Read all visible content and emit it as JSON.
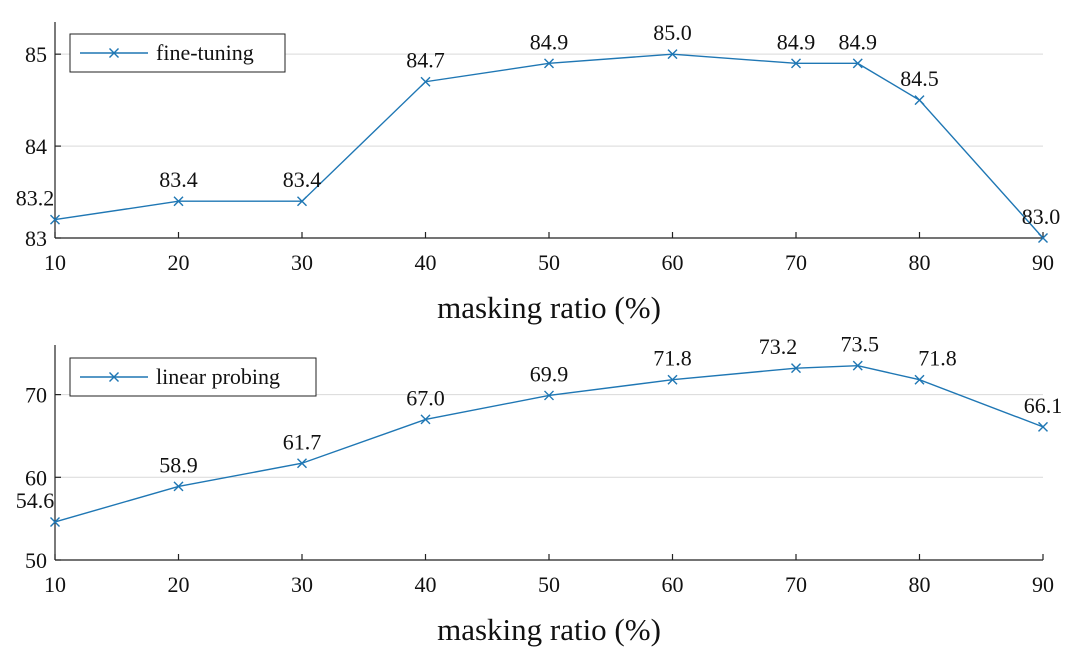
{
  "colors": {
    "series": "#1f77b4",
    "grid": "#d9d9d9",
    "axis": "#222222"
  },
  "chart_data": [
    {
      "type": "line",
      "series": [
        {
          "name": "fine-tuning",
          "x": [
            10,
            20,
            30,
            40,
            50,
            60,
            70,
            75,
            80,
            90
          ],
          "values": [
            83.2,
            83.4,
            83.4,
            84.7,
            84.9,
            85.0,
            84.9,
            84.9,
            84.5,
            83.0
          ],
          "labels": [
            "83.2",
            "83.4",
            "83.4",
            "84.7",
            "84.9",
            "85.0",
            "84.9",
            "84.9",
            "84.5",
            "83.0"
          ]
        }
      ],
      "xticks": [
        10,
        20,
        30,
        40,
        50,
        60,
        70,
        80,
        90
      ],
      "xtick_labels": [
        "10",
        "20",
        "30",
        "40",
        "50",
        "60",
        "70",
        "80",
        "90"
      ],
      "yticks": [
        83,
        84,
        85
      ],
      "ytick_labels": [
        "83",
        "84",
        "85"
      ],
      "xlim": [
        10,
        90
      ],
      "ylim": [
        83,
        85.35
      ],
      "xlabel": "masking ratio (%)",
      "ylabel": "",
      "legend": "top-left",
      "grid": true,
      "marker": "x"
    },
    {
      "type": "line",
      "series": [
        {
          "name": "linear probing",
          "x": [
            10,
            20,
            30,
            40,
            50,
            60,
            70,
            75,
            80,
            90
          ],
          "values": [
            54.6,
            58.9,
            61.7,
            67.0,
            69.9,
            71.8,
            73.2,
            73.5,
            71.8,
            66.1
          ],
          "labels": [
            "54.6",
            "58.9",
            "61.7",
            "67.0",
            "69.9",
            "71.8",
            "73.2",
            "73.5",
            "71.8",
            "66.1"
          ]
        }
      ],
      "xticks": [
        10,
        20,
        30,
        40,
        50,
        60,
        70,
        80,
        90
      ],
      "xtick_labels": [
        "10",
        "20",
        "30",
        "40",
        "50",
        "60",
        "70",
        "80",
        "90"
      ],
      "yticks": [
        50,
        60,
        70
      ],
      "ytick_labels": [
        "50",
        "60",
        "70"
      ],
      "xlim": [
        10,
        90
      ],
      "ylim": [
        50,
        76
      ],
      "xlabel": "masking ratio (%)",
      "ylabel": "",
      "legend": "top-left",
      "grid": true,
      "marker": "x"
    }
  ]
}
